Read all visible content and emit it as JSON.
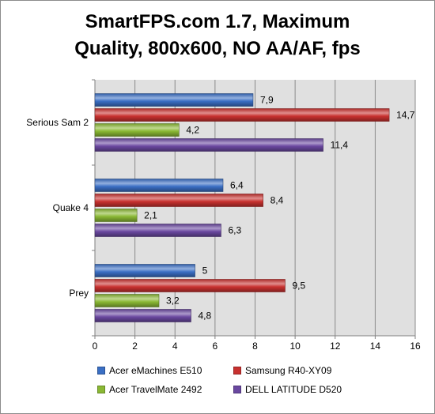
{
  "chart_data": {
    "type": "bar",
    "orientation": "horizontal",
    "title_line1": "SmartFPS.com 1.7, Maximum",
    "title_line2": "Quality, 800x600, NO AA/AF, fps",
    "categories": [
      "Serious Sam 2",
      "Quake 4",
      "Prey"
    ],
    "series": [
      {
        "name": "Acer eMachines E510",
        "color": "#3a6fc4",
        "values": [
          7.9,
          6.4,
          5
        ],
        "labels": [
          "7,9",
          "6,4",
          "5"
        ]
      },
      {
        "name": "Samsung R40-XY09",
        "color": "#c8312f",
        "values": [
          14.7,
          8.4,
          9.5
        ],
        "labels": [
          "14,7",
          "8,4",
          "9,5"
        ]
      },
      {
        "name": "Acer TravelMate 2492",
        "color": "#8ab834",
        "values": [
          4.2,
          2.1,
          3.2
        ],
        "labels": [
          "4,2",
          "2,1",
          "3,2"
        ]
      },
      {
        "name": "DELL LATITUDE D520",
        "color": "#6a48a0",
        "values": [
          11.4,
          6.3,
          4.8
        ],
        "labels": [
          "11,4",
          "6,3",
          "4,8"
        ]
      }
    ],
    "xlim": [
      0,
      16
    ],
    "xticks": [
      0,
      2,
      4,
      6,
      8,
      10,
      12,
      14,
      16
    ],
    "grid": true,
    "legend_position": "bottom"
  }
}
